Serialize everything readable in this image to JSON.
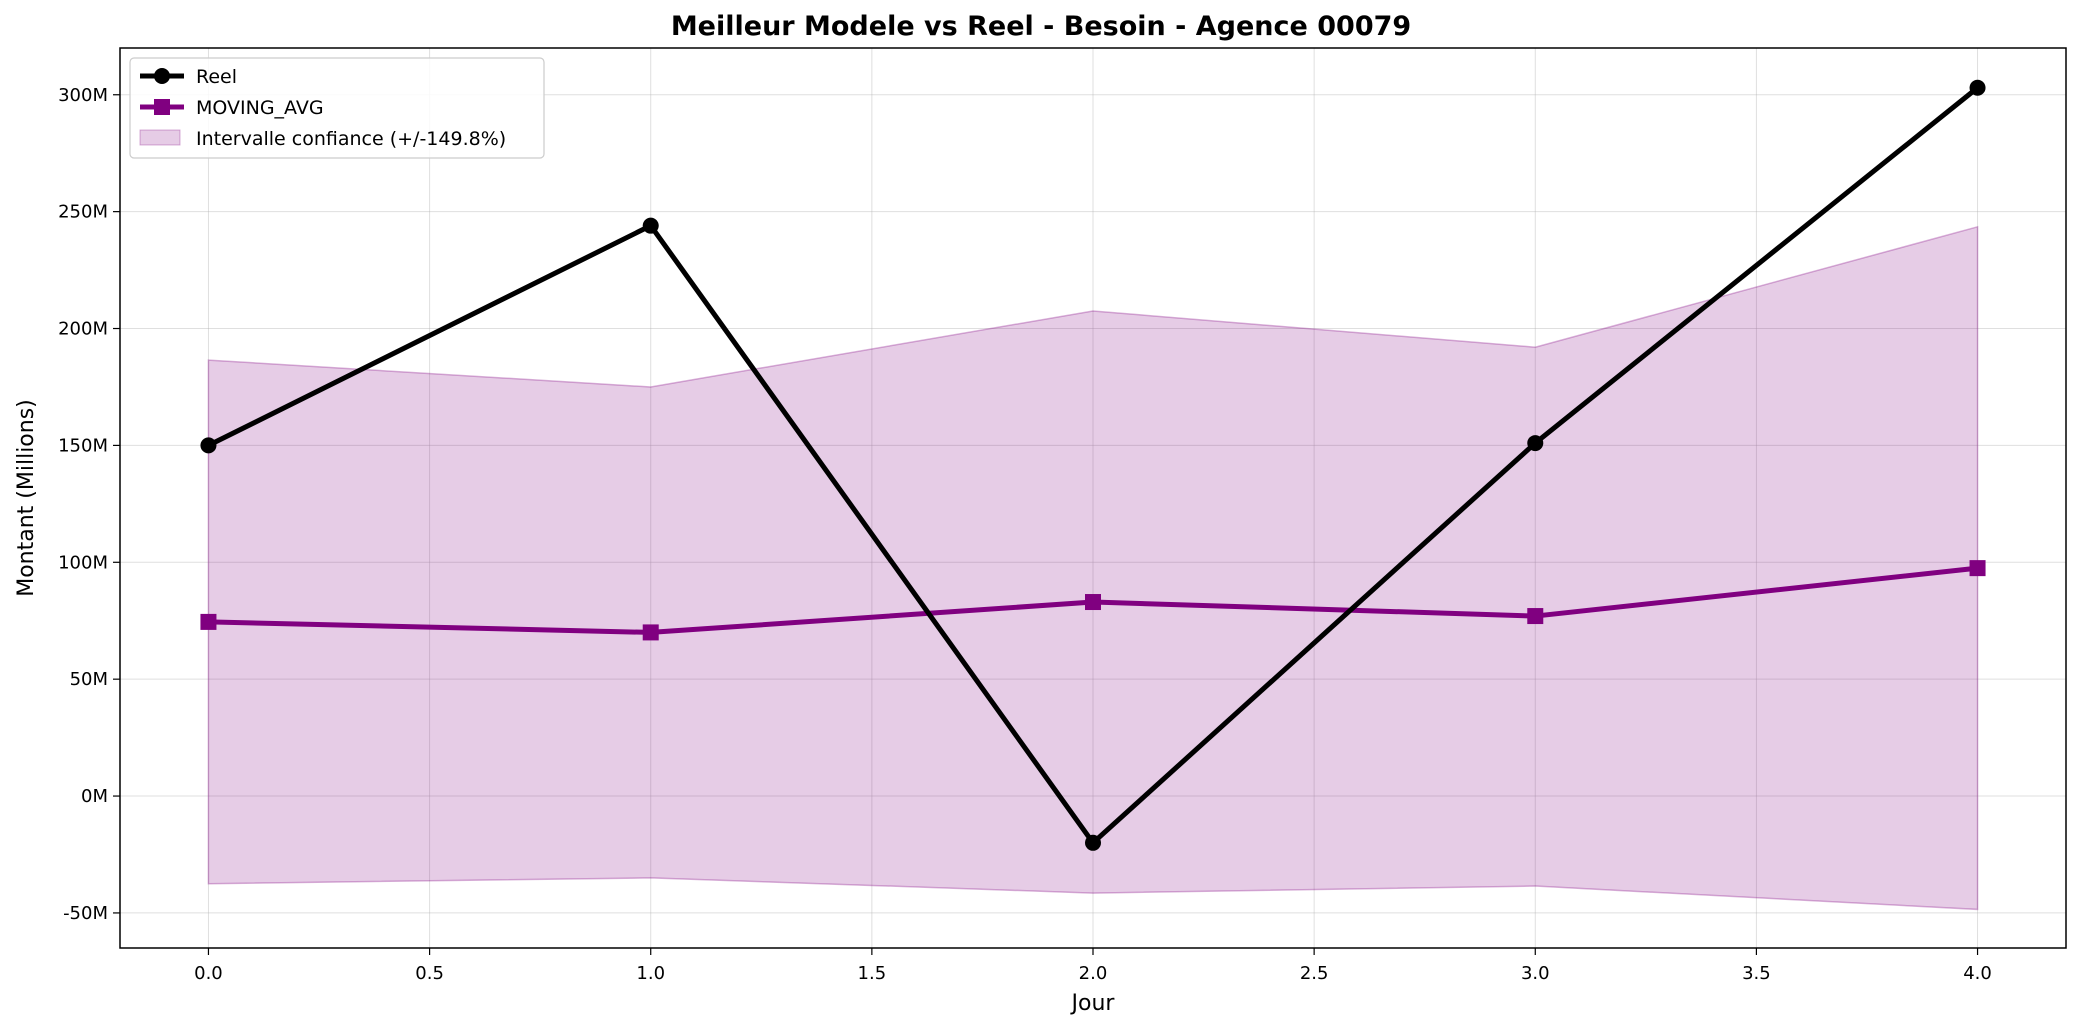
{
  "chart_data": {
    "type": "line",
    "title": "Meilleur Modele vs Reel - Besoin - Agence 00079",
    "xlabel": "Jour",
    "ylabel": "Montant (Millions)",
    "x": [
      0,
      1,
      2,
      3,
      4
    ],
    "xlim": [
      -0.2,
      4.2
    ],
    "ylim": [
      -65,
      320
    ],
    "xticks": [
      0.0,
      0.5,
      1.0,
      1.5,
      2.0,
      2.5,
      3.0,
      3.5,
      4.0
    ],
    "xtick_labels": [
      "0.0",
      "0.5",
      "1.0",
      "1.5",
      "2.0",
      "2.5",
      "3.0",
      "3.5",
      "4.0"
    ],
    "yticks": [
      -50,
      0,
      50,
      100,
      150,
      200,
      250,
      300
    ],
    "ytick_labels": [
      "-50M",
      "0M",
      "50M",
      "100M",
      "150M",
      "200M",
      "250M",
      "300M"
    ],
    "grid": true,
    "legend_position": "top-left",
    "series": [
      {
        "name": "Reel",
        "values": [
          150,
          244,
          -20,
          151,
          303
        ],
        "color": "#000000",
        "marker": "circle"
      },
      {
        "name": "MOVING_AVG",
        "values": [
          74.5,
          70,
          83,
          77,
          97.5
        ],
        "color": "#800080",
        "marker": "square"
      }
    ],
    "band": {
      "name": "Intervalle confiance (+/-149.8%)",
      "upper": [
        186.5,
        175,
        207.5,
        192,
        243.5
      ],
      "lower": [
        -37.5,
        -35,
        -41.5,
        -38.5,
        -48.5
      ],
      "color": "#800080",
      "opacity": 0.2
    }
  }
}
